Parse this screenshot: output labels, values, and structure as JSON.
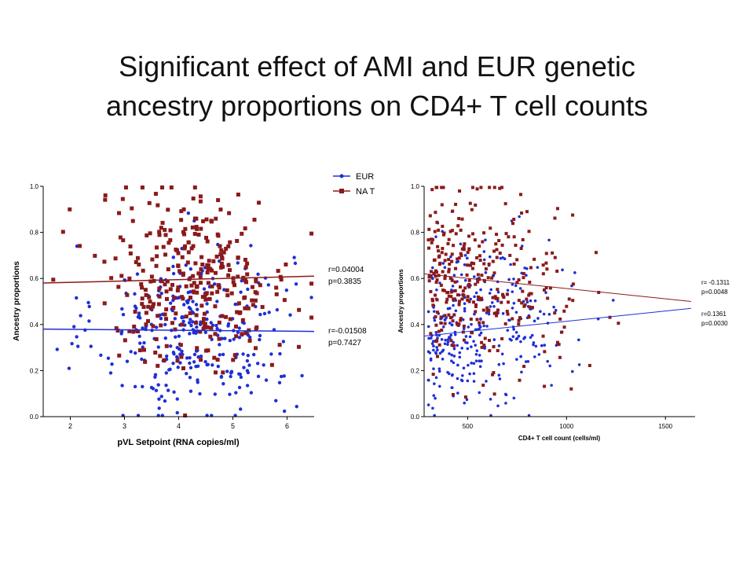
{
  "title": {
    "line1": "Significant effect of AMI and EUR genetic",
    "line2": "ancestry proportions on CD4+ T cell counts"
  },
  "colors": {
    "eur": "#1f2fd6",
    "nat": "#8b1a1a"
  },
  "chart_data": [
    {
      "type": "scatter",
      "title": "",
      "xlabel": "pVL Setpoint (RNA copies/ml)",
      "ylabel": "Ancestry proportions",
      "xlim": [
        1.5,
        6.5
      ],
      "ylim": [
        0,
        1
      ],
      "xticks": [
        "2",
        "3",
        "4",
        "5",
        "6"
      ],
      "yticks": [
        "0.0",
        "0.2",
        "0.4",
        "0.6",
        "0.8",
        "1.0"
      ],
      "legend": {
        "placement": "top-right",
        "entries": [
          "EUR",
          "NA T"
        ]
      },
      "series": [
        {
          "name": "EUR",
          "fit": {
            "x": [
              1.5,
              6.5
            ],
            "y": [
              0.38,
              0.37
            ]
          },
          "stats": [
            "r=-0.01508",
            "p=0.7427"
          ]
        },
        {
          "name": "NA T",
          "fit": {
            "x": [
              1.5,
              6.5
            ],
            "y": [
              0.58,
              0.61
            ]
          },
          "stats": [
            "r=0.04004",
            "p=0.3835"
          ]
        }
      ]
    },
    {
      "type": "scatter",
      "title": "",
      "xlabel": "CD4+ T cell count (cells/ml)",
      "ylabel": "Ancestry proportions",
      "xlim": [
        280,
        1650
      ],
      "ylim": [
        0,
        1
      ],
      "xticks": [
        "500",
        "1000",
        "1500"
      ],
      "yticks": [
        "0.0",
        "0.2",
        "0.4",
        "0.6",
        "0.8",
        "1.0"
      ],
      "series": [
        {
          "name": "EUR",
          "fit": {
            "x": [
              280,
              1630
            ],
            "y": [
              0.35,
              0.47
            ]
          },
          "stats": [
            "r=0.1361",
            "p=0.0030"
          ]
        },
        {
          "name": "NA T",
          "fit": {
            "x": [
              280,
              1630
            ],
            "y": [
              0.62,
              0.5
            ]
          },
          "stats": [
            "r= -0.1311",
            "p=0.0048"
          ]
        }
      ]
    }
  ]
}
